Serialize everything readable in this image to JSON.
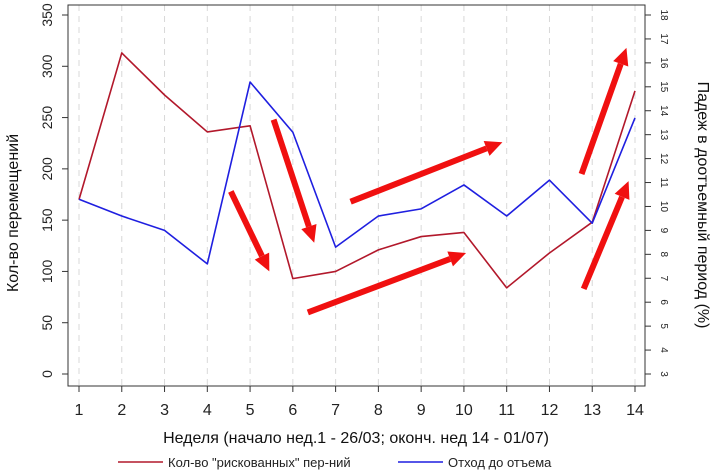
{
  "chart_data": {
    "type": "line",
    "title": "",
    "xlabel": "Неделя (начало нед.1 - 26/03; оконч. нед 14 - 01/07)",
    "ylabel_left": "Кол-во перемещений",
    "ylabel_right": "Падеж в доотъемный период (%)",
    "categories": [
      "1",
      "2",
      "3",
      "4",
      "5",
      "6",
      "7",
      "8",
      "9",
      "10",
      "11",
      "12",
      "13",
      "14"
    ],
    "x": [
      1,
      2,
      3,
      4,
      5,
      6,
      7,
      8,
      9,
      10,
      11,
      12,
      13,
      14
    ],
    "ylim_left": [
      0,
      350
    ],
    "ylim_right": [
      3,
      18
    ],
    "yticks_left": [
      "0",
      "50",
      "100",
      "150",
      "200",
      "250",
      "300",
      "350"
    ],
    "yticks_right": [
      "3",
      "4",
      "5",
      "6",
      "7",
      "8",
      "9",
      "10",
      "11",
      "12",
      "13",
      "14",
      "15",
      "16",
      "17",
      "18"
    ],
    "grid": "vertical dashed",
    "legend_position": "bottom",
    "series": [
      {
        "name": "Кол-во \"рискованных\" пер-ний",
        "axis": "left",
        "color": "#b2182b",
        "values": [
          170,
          313,
          272,
          236,
          242,
          93,
          100,
          121,
          134,
          138,
          84,
          118,
          148,
          276
        ]
      },
      {
        "name": "Отход до отъема",
        "axis": "right",
        "color": "#1f1fe0",
        "values": [
          10.3,
          9.6,
          9.0,
          7.6,
          15.2,
          13.1,
          8.3,
          9.6,
          9.9,
          10.9,
          9.6,
          11.1,
          9.3,
          13.7
        ]
      }
    ],
    "annotations": [
      {
        "type": "arrow",
        "color": "#f01010",
        "from": [
          4.55,
          178
        ],
        "to": [
          5.45,
          100
        ]
      },
      {
        "type": "arrow",
        "color": "#f01010",
        "from": [
          5.55,
          248
        ],
        "to": [
          6.5,
          128
        ]
      },
      {
        "type": "arrow",
        "color": "#f01010",
        "from": [
          6.35,
          60
        ],
        "to": [
          10.05,
          118
        ]
      },
      {
        "type": "arrow",
        "color": "#f01010",
        "from": [
          7.35,
          168
        ],
        "to": [
          10.9,
          226
        ]
      },
      {
        "type": "arrow",
        "color": "#f01010",
        "from": [
          12.8,
          83
        ],
        "to": [
          13.85,
          188
        ]
      },
      {
        "type": "arrow",
        "color": "#f01010",
        "from": [
          12.75,
          195
        ],
        "to": [
          13.8,
          318
        ]
      }
    ]
  }
}
